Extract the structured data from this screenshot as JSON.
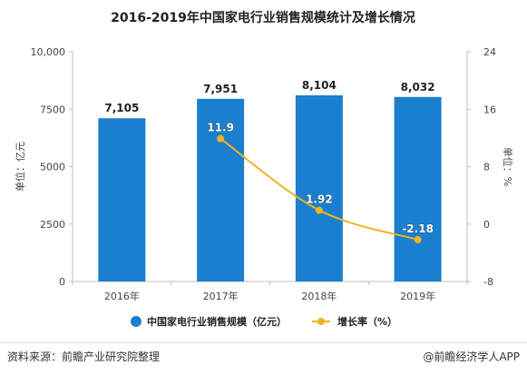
{
  "chart_data": {
    "type": "bar+line",
    "title": "2016-2019年中国家电行业销售规模统计及增长情况",
    "categories": [
      "2016年",
      "2017年",
      "2018年",
      "2019年"
    ],
    "series": [
      {
        "name": "中国家电行业销售规模（亿元）",
        "type": "bar",
        "axis": "left",
        "values": [
          7105,
          7951,
          8104,
          8032
        ],
        "labels": [
          "7,105",
          "7,951",
          "8,104",
          "8,032"
        ],
        "color": "#1a7fcf"
      },
      {
        "name": "增长率（%）",
        "type": "line",
        "axis": "right",
        "values": [
          null,
          11.9,
          1.92,
          -2.18
        ],
        "labels": [
          "",
          "11.9",
          "1.92",
          "-2.18"
        ],
        "color": "#f0b323"
      }
    ],
    "ylabel": "单位：亿元",
    "y2label": "单位：%",
    "ylim": [
      0,
      10000
    ],
    "yticks": [
      0,
      2500,
      5000,
      7500,
      10000
    ],
    "ytick_labels": [
      "0",
      "2500",
      "5000",
      "7500",
      "10,000"
    ],
    "y2lim": [
      -8,
      24
    ],
    "y2ticks": [
      -8,
      0,
      8,
      16,
      24
    ],
    "legend": "bottom",
    "grid": false
  },
  "footer": {
    "source": "资料来源：前瞻产业研究院整理",
    "credit": "@前瞻经济学人APP"
  }
}
